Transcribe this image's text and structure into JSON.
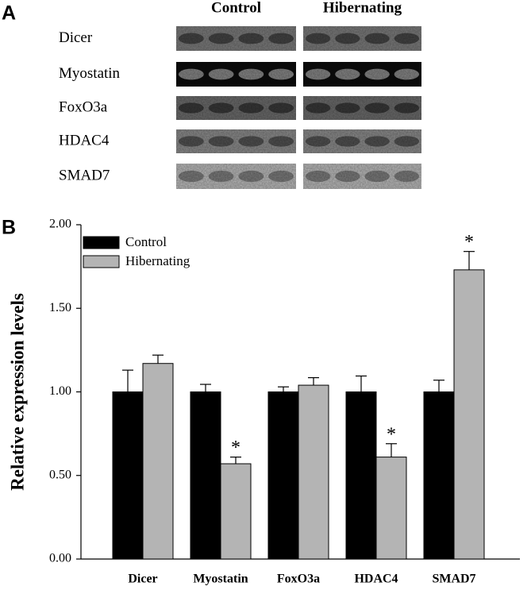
{
  "panel_a": {
    "panel_label": "A",
    "groups": [
      "Control",
      "Hibernating"
    ],
    "proteins": [
      "Dicer",
      "Myostatin",
      "FoxO3a",
      "HDAC4",
      "SMAD7"
    ]
  },
  "chart_data": {
    "type": "bar",
    "panel_label": "B",
    "y_label": "Relative expression levels",
    "categories": [
      "Dicer",
      "Myostatin",
      "FoxO3a",
      "HDAC4",
      "SMAD7"
    ],
    "series": [
      {
        "name": "Control",
        "color": "#000000",
        "values": [
          1.0,
          1.0,
          1.0,
          1.0,
          1.0
        ],
        "errors": [
          0.13,
          0.045,
          0.03,
          0.095,
          0.07
        ]
      },
      {
        "name": "Hibernating",
        "color": "#b4b4b4",
        "values": [
          1.17,
          0.57,
          1.04,
          0.61,
          1.73
        ],
        "errors": [
          0.05,
          0.04,
          0.045,
          0.08,
          0.11
        ]
      }
    ],
    "annotations": [
      {
        "text": "*",
        "category": "Myostatin",
        "series": "Hibernating"
      },
      {
        "text": "*",
        "category": "HDAC4",
        "series": "Hibernating"
      },
      {
        "text": "*",
        "category": "SMAD7",
        "series": "Hibernating"
      }
    ],
    "ylim": [
      0,
      2
    ],
    "yticks": [
      {
        "value": 0,
        "label": "0.00"
      },
      {
        "value": 0.5,
        "label": "0.50"
      },
      {
        "value": 1,
        "label": "1.00"
      },
      {
        "value": 1.5,
        "label": "1.50"
      },
      {
        "value": 2,
        "label": "2.00"
      }
    ],
    "legend": "top-left"
  }
}
